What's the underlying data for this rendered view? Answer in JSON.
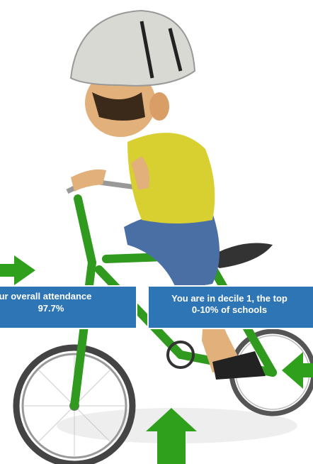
{
  "boxes": [
    {
      "lines": [
        "ur overall attendance",
        "97.7%"
      ]
    },
    {
      "lines": [
        "You are in decile 1, the top",
        "0-10% of schools"
      ]
    }
  ]
}
